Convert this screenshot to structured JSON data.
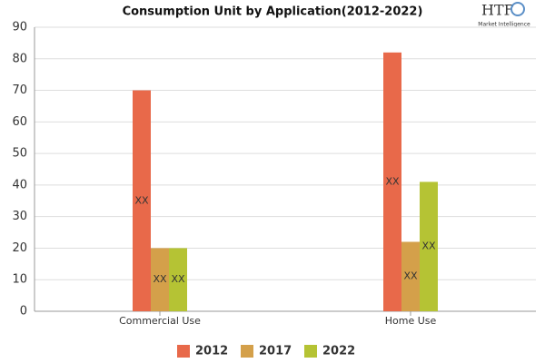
{
  "chart_data": {
    "type": "bar",
    "title": "Consumption Unit by  Application(2012-2022)",
    "categories": [
      "Commercial Use",
      "Home Use"
    ],
    "series": [
      {
        "name": "2012",
        "color": "#e8694a",
        "values": [
          70,
          82
        ],
        "data_labels": [
          "XX",
          "XX"
        ]
      },
      {
        "name": "2017",
        "color": "#d4a04a",
        "values": [
          20,
          22
        ],
        "data_labels": [
          "XX",
          "XX"
        ]
      },
      {
        "name": "2022",
        "color": "#b5c334",
        "values": [
          20,
          41
        ],
        "data_labels": [
          "XX",
          "XX"
        ]
      }
    ],
    "ylim": [
      0,
      90
    ],
    "yticks": [
      0,
      10,
      20,
      30,
      40,
      50,
      60,
      70,
      80,
      90
    ],
    "grid": true,
    "legend": "bottom",
    "watermark": {
      "logo": "HTF",
      "tagline": "Market Intelligence"
    }
  }
}
